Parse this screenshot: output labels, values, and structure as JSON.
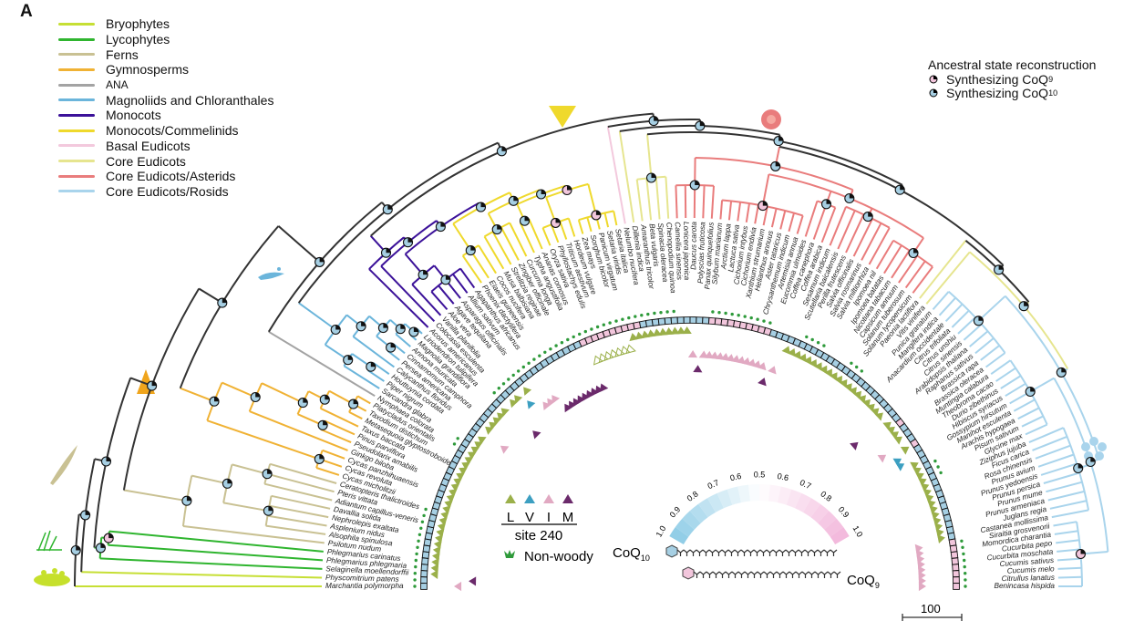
{
  "panel_label": "A",
  "clade_legend": [
    {
      "key": "bryo",
      "label": "Bryophytes",
      "color": "#c6df34"
    },
    {
      "key": "lyco",
      "label": "Lycophytes",
      "color": "#2fb52f"
    },
    {
      "key": "fern",
      "label": "Ferns",
      "color": "#c9c193"
    },
    {
      "key": "gym",
      "label": "Gymnosperms",
      "color": "#f0b234"
    },
    {
      "key": "ana",
      "label": "ANA",
      "color": "#a3a3a3"
    },
    {
      "key": "mag",
      "label": "Magnoliids and Chloranthales",
      "color": "#6bb5db"
    },
    {
      "key": "mono",
      "label": "Monocots",
      "color": "#3b1199"
    },
    {
      "key": "comm",
      "label": "Monocots/Commelinids",
      "color": "#efd92c"
    },
    {
      "key": "basal",
      "label": "Basal Eudicots",
      "color": "#f3c9dd"
    },
    {
      "key": "core",
      "label": "Core Eudicots",
      "color": "#e6e58f"
    },
    {
      "key": "ast",
      "label": "Core Eudicots/Asterids",
      "color": "#e97c7c"
    },
    {
      "key": "ros",
      "label": "Core Eudicots/Rosids",
      "color": "#a9d4ec"
    }
  ],
  "ancestral_legend": {
    "title": "Ancestral state reconstruction",
    "items": [
      {
        "label": "Synthesizing CoQ",
        "sub": "9",
        "color": "#f2c6dc"
      },
      {
        "label": "Synthesizing CoQ",
        "sub": "10",
        "color": "#a6cfe3"
      }
    ]
  },
  "species": [
    "Marchantia polymorpha",
    "Physcomitrium patens",
    "Selaginella moellendorffii",
    "Phlegmarius phlegmaria",
    "Phlegmarius carinatus",
    "Psilotum nudum",
    "Alsophila spinulosa",
    "Asplenium nidus",
    "Nephrolepis exaltata",
    "Davallia solida",
    "Adiantum capillus-veneris",
    "Pteris vittata",
    "Ceratopteris thalictroides",
    "Cycas micholitzii",
    "Cycas revoluta",
    "Cycas panzhihuaensis",
    "Ginkgo biloba",
    "Pseudolarix amabilis",
    "Pinus parviflora",
    "Taxus baccata",
    "Metasequoia glyptostroboides",
    "Taxodium distichum",
    "Platycladus orientalis",
    "Nymphaea colorata",
    "Sarcandra glabra",
    "Piper nigrum",
    "Houttuynia cordata",
    "Calycanthus floridus",
    "Persea americana",
    "Cinnamomum camphora",
    "Annona muricata",
    "Magnolia grandiflora",
    "Liriodendron tulipifera",
    "Acorus americanus",
    "Colocasia esculenta",
    "Vanilla planifolia",
    "Aloe vera",
    "Agave tequilana",
    "Asparagus officinalis",
    "Allium sativum",
    "Agapanthus africanus",
    "Phoenix dactylifera",
    "Elaeis guineensis",
    "Cocos nucifera",
    "Musa balbisiana",
    "Strelitzia reginae",
    "Zingiber officinale",
    "Curcuma longa",
    "Typha angustifolia",
    "Ananas comosus",
    "Oryza sativa",
    "Phyllostachys edulis",
    "Triticum aestivum",
    "Hordeum vulgare",
    "Zea mays",
    "Sorghum bicolor",
    "Panicum virgatum",
    "Setaria viridis",
    "Setaria italica",
    "Nelumbo nucifera",
    "Dillenia indica",
    "Amaranthus tricolor",
    "Beta vulgaris",
    "Spinacia oleracea",
    "Chenopodium quinoa",
    "Camellia sinensis",
    "Lonicera japonica",
    "Daucus carota",
    "Polyscias fruticosa",
    "Panax quinquefolius",
    "Silybum marianum",
    "Arctium lappa",
    "Lactuca sativa",
    "Cichorium intybus",
    "Cichorium endivia",
    "Xanthium strumarium",
    "Helianthus annuus",
    "Aster tataricus",
    "Chrysanthemum indicum",
    "Artemisia annua",
    "Eucommia ulmoides",
    "Coffea canephora",
    "Coffea arabica",
    "Sesamum indicum",
    "Scutellaria baicalensis",
    "Perilla frutescens",
    "Salvia officinalis",
    "Salvia rosmarinus",
    "Salvia miltiorrhiza",
    "Ipomoea nil",
    "Ipomoea batatas",
    "Nicotiana tabacum",
    "Capsicum annuum",
    "Solanum tuberosum",
    "Solanum lycopersicum",
    "Paeonia lactiflora",
    "Vitis vinifera",
    "Punica granatum",
    "Mangifera indica",
    "Anacardium occidentale",
    "Citrus trifoliata",
    "Citrus unshiu",
    "Citrus sinensis",
    "Arabidopsis thaliana",
    "Raphanus sativus",
    "Brassica rapa",
    "Brassica oleracea",
    "Muntingia calabura",
    "Theobroma cacao",
    "Durio zibethinus",
    "Hibiscus syriacus",
    "Gossypium hirsutum",
    "Manihot esculenta",
    "Arachis hypogaea",
    "Pisum sativum",
    "Glycine max",
    "Ziziphus jujuba",
    "Ficus carica",
    "Rosa chinensis",
    "Prunus avium",
    "Prunus yedoensis",
    "Prunus persica",
    "Prunus mume",
    "Prunus armeniaca",
    "Juglans regia",
    "Castanea mollissima",
    "Siraitia grosvenorii",
    "Momordica charantia",
    "Cucurbita pepo",
    "Cucurbita moschata",
    "Cucumis sativus",
    "Cucumis melo",
    "Citrullus lanatus",
    "Benincasa hispida"
  ],
  "species_clade_runs": [
    [
      "bryo",
      2
    ],
    [
      "lyco",
      3
    ],
    [
      "fern",
      8
    ],
    [
      "gym",
      10
    ],
    [
      "ana",
      1
    ],
    [
      "mag",
      9
    ],
    [
      "mono",
      8
    ],
    [
      "comm",
      18
    ],
    [
      "basal",
      1
    ],
    [
      "core",
      5
    ],
    [
      "ast",
      30
    ],
    [
      "core",
      2
    ],
    [
      "ros",
      37
    ]
  ],
  "coq_state_runs": [
    [
      "CoQ10",
      49
    ],
    [
      "CoQ9",
      10
    ],
    [
      "CoQ10",
      11
    ],
    [
      "CoQ9",
      10
    ],
    [
      "CoQ10",
      25
    ],
    [
      "CoQ9",
      1
    ],
    [
      "CoQ10",
      3
    ],
    [
      "CoQ9",
      1
    ],
    [
      "CoQ10",
      16
    ],
    [
      "CoQ9",
      8
    ]
  ],
  "site240_runs": [
    [
      "I",
      1
    ],
    [
      "M",
      1
    ],
    [
      "L",
      25
    ],
    [
      "I",
      1
    ],
    [
      "L",
      5
    ],
    [
      "M",
      1
    ],
    [
      "L",
      2
    ],
    [
      "V",
      1
    ],
    [
      "L",
      1
    ],
    [
      "I",
      3
    ],
    [
      "M",
      9
    ],
    [
      "L-open",
      7
    ],
    [
      "L",
      10
    ],
    [
      "I",
      1
    ],
    [
      "M",
      1
    ],
    [
      "I",
      12
    ],
    [
      "M",
      1
    ],
    [
      "I",
      1
    ],
    [
      "L",
      20
    ],
    [
      "M",
      1
    ],
    [
      "L",
      4
    ],
    [
      "I",
      1
    ],
    [
      "L",
      1
    ],
    [
      "V",
      2
    ],
    [
      "L",
      14
    ],
    [
      "I",
      8
    ]
  ],
  "nonwoody_runs": [
    [
      true,
      13
    ],
    [
      false,
      10
    ],
    [
      true,
      2
    ],
    [
      false,
      8
    ],
    [
      true,
      32
    ],
    [
      false,
      5
    ],
    [
      true,
      10
    ],
    [
      false,
      5
    ],
    [
      true,
      4
    ],
    [
      false,
      4
    ],
    [
      true,
      3
    ],
    [
      false,
      17
    ],
    [
      true,
      3
    ],
    [
      false,
      10
    ],
    [
      true,
      8
    ]
  ],
  "colors": {
    "CoQ10": "#a6cfe3",
    "CoQ9": "#f2c6dc",
    "backbone": "#333333",
    "L": "#9bb04a",
    "V": "#3c9fc1",
    "I": "#e1a9c2",
    "M": "#6b2a6b",
    "nonwoody": "#2e9a3a"
  },
  "site_legend": {
    "residues": [
      "L",
      "V",
      "I",
      "M"
    ],
    "title": "site 240",
    "nonwoody_label": "Non-woody"
  },
  "color_scale": {
    "ticks": [
      "1.0",
      "0.9",
      "0.8",
      "0.7",
      "0.6",
      "0.5",
      "0.6",
      "0.7",
      "0.8",
      "0.9",
      "1.0"
    ]
  },
  "structures": {
    "coq10_label": "CoQ",
    "coq10_sub": "10",
    "coq9_label": "CoQ",
    "coq9_sub": "9"
  },
  "scale_bar": {
    "label": "100"
  }
}
